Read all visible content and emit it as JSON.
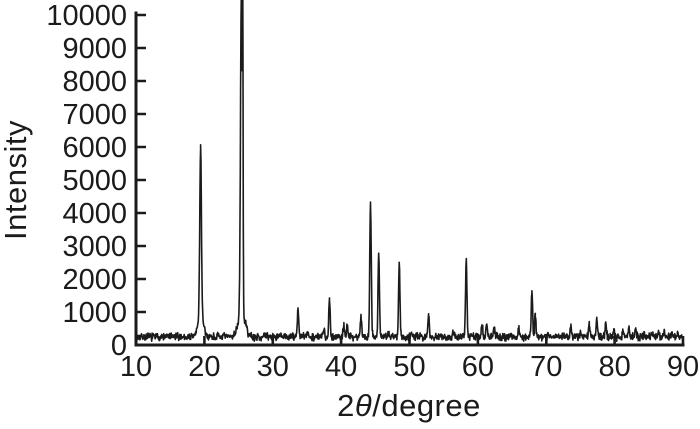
{
  "figure": {
    "background": "#ffffff",
    "ink_color": "#1b1b1b"
  },
  "chart_data": {
    "type": "line",
    "title": "",
    "xlabel": {
      "full": "2θ/degree",
      "prefix": "2",
      "theta": "θ",
      "suffix": "/degree"
    },
    "ylabel": "Intensity",
    "xlim": [
      10,
      90
    ],
    "ylim": [
      0,
      10000
    ],
    "x_ticks": [
      10,
      20,
      30,
      40,
      50,
      60,
      70,
      80,
      90
    ],
    "y_ticks": [
      0,
      1000,
      2000,
      3000,
      4000,
      5000,
      6000,
      7000,
      8000,
      9000,
      10000
    ],
    "grid": false,
    "legend": "none",
    "series_name": "xrd-pattern",
    "line_color": "#1b1b1b",
    "baseline_intensity": 250,
    "noise_amplitude": 140,
    "peaks": [
      {
        "two_theta": 19.45,
        "intensity": 5400,
        "width": 0.12
      },
      {
        "two_theta": 19.45,
        "intensity": 850,
        "width": 0.4
      },
      {
        "two_theta": 25.4,
        "intensity": 9850,
        "width": 0.12
      },
      {
        "two_theta": 25.62,
        "intensity": 8100,
        "width": 0.05
      },
      {
        "two_theta": 25.45,
        "intensity": 1000,
        "width": 0.5
      },
      {
        "two_theta": 33.7,
        "intensity": 1120
      },
      {
        "two_theta": 35.1,
        "intensity": 380
      },
      {
        "two_theta": 37.5,
        "intensity": 480
      },
      {
        "two_theta": 38.3,
        "intensity": 1400
      },
      {
        "two_theta": 40.4,
        "intensity": 620
      },
      {
        "two_theta": 40.9,
        "intensity": 560
      },
      {
        "two_theta": 42.9,
        "intensity": 880
      },
      {
        "two_theta": 44.3,
        "intensity": 4250,
        "width": 0.11
      },
      {
        "two_theta": 45.5,
        "intensity": 2760
      },
      {
        "two_theta": 46.9,
        "intensity": 400
      },
      {
        "two_theta": 48.5,
        "intensity": 2520
      },
      {
        "two_theta": 50.3,
        "intensity": 450
      },
      {
        "two_theta": 52.8,
        "intensity": 950
      },
      {
        "two_theta": 54.6,
        "intensity": 330
      },
      {
        "two_theta": 56.4,
        "intensity": 360
      },
      {
        "two_theta": 58.3,
        "intensity": 2650
      },
      {
        "two_theta": 60.6,
        "intensity": 640
      },
      {
        "two_theta": 61.3,
        "intensity": 600
      },
      {
        "two_theta": 62.4,
        "intensity": 460
      },
      {
        "two_theta": 64.8,
        "intensity": 360
      },
      {
        "two_theta": 66.0,
        "intensity": 470
      },
      {
        "two_theta": 67.9,
        "intensity": 1620
      },
      {
        "two_theta": 68.4,
        "intensity": 930
      },
      {
        "two_theta": 70.3,
        "intensity": 380
      },
      {
        "two_theta": 71.8,
        "intensity": 340
      },
      {
        "two_theta": 73.6,
        "intensity": 610
      },
      {
        "two_theta": 75.0,
        "intensity": 360
      },
      {
        "two_theta": 76.3,
        "intensity": 650
      },
      {
        "two_theta": 77.4,
        "intensity": 760
      },
      {
        "two_theta": 78.7,
        "intensity": 620
      },
      {
        "two_theta": 79.9,
        "intensity": 470
      },
      {
        "two_theta": 81.2,
        "intensity": 400
      },
      {
        "two_theta": 82.1,
        "intensity": 520
      },
      {
        "two_theta": 83.1,
        "intensity": 430
      },
      {
        "two_theta": 84.3,
        "intensity": 370
      },
      {
        "two_theta": 85.4,
        "intensity": 390
      },
      {
        "two_theta": 86.4,
        "intensity": 360
      },
      {
        "two_theta": 87.3,
        "intensity": 420
      },
      {
        "two_theta": 88.4,
        "intensity": 400
      },
      {
        "two_theta": 89.3,
        "intensity": 360
      }
    ]
  }
}
